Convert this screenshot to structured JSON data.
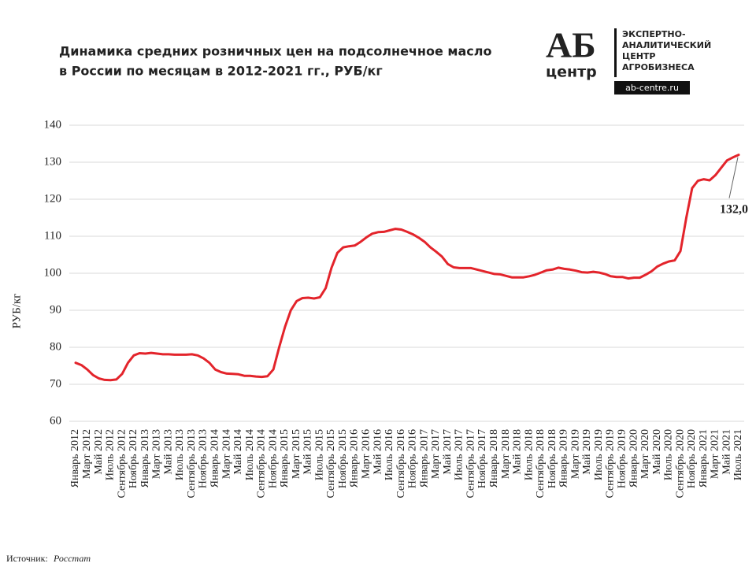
{
  "chart_data": {
    "type": "line",
    "title": [
      "Динамика средних розничных цен на подсолнечное масло",
      "в России по месяцам в 2012-2021 гг., РУБ/кг"
    ],
    "logo": {
      "mark": "АБ",
      "word": "центр",
      "lines": [
        "ЭКСПЕРТНО-",
        "АНАЛИТИЧЕСКИЙ",
        "ЦЕНТР",
        "АГРОБИЗНЕСА"
      ],
      "site": "ab-centre.ru"
    },
    "y_label": "РУБ/кг",
    "source_label": "Источник:",
    "source": "Росстат",
    "annotation": "132,0",
    "ylim": [
      60,
      140
    ],
    "yticks": [
      60,
      70,
      80,
      90,
      100,
      110,
      120,
      130,
      140
    ],
    "grid": true,
    "categories": [
      "Январь 2012",
      null,
      "Март 2012",
      null,
      "Май 2012",
      null,
      "Июль 2012",
      null,
      "Сентябрь 2012",
      null,
      "Ноябрь 2012",
      null,
      "Январь 2013",
      null,
      "Март 2013",
      null,
      "Май 2013",
      null,
      "Июль 2013",
      null,
      "Сентябрь 2013",
      null,
      "Ноябрь 2013",
      null,
      "Январь 2014",
      null,
      "Март 2014",
      null,
      "Май 2014",
      null,
      "Июль 2014",
      null,
      "Сентябрь 2014",
      null,
      "Ноябрь 2014",
      null,
      "Январь 2015",
      null,
      "Март 2015",
      null,
      "Май 2015",
      null,
      "Июль 2015",
      null,
      "Сентябрь 2015",
      null,
      "Ноябрь 2015",
      null,
      "Январь 2016",
      null,
      "Март 2016",
      null,
      "Май 2016",
      null,
      "Июль 2016",
      null,
      "Сентябрь 2016",
      null,
      "Ноябрь 2016",
      null,
      "Январь 2017",
      null,
      "Март 2017",
      null,
      "Май 2017",
      null,
      "Июль 2017",
      null,
      "Сентябрь 2017",
      null,
      "Ноябрь 2017",
      null,
      "Январь 2018",
      null,
      "Март 2018",
      null,
      "Май 2018",
      null,
      "Июль 2018",
      null,
      "Сентябрь 2018",
      null,
      "Ноябрь 2018",
      null,
      "Январь 2019",
      null,
      "Март 2019",
      null,
      "Май 2019",
      null,
      "Июль 2019",
      null,
      "Сентябрь 2019",
      null,
      "Ноябрь 2019",
      null,
      "Январь 2020",
      null,
      "Март 2020",
      null,
      "Май 2020",
      null,
      "Июль 2020",
      null,
      "Сентябрь 2020",
      null,
      "Ноябрь 2020",
      null,
      "Январь 2021",
      null,
      "Март 2021",
      null,
      "Май 2021",
      null,
      "Июль 2021"
    ],
    "series": [
      {
        "name": "РУБ/кг",
        "color": "#e3242b",
        "values": [
          75.8,
          75.2,
          74.0,
          72.5,
          71.6,
          71.2,
          71.1,
          71.3,
          72.8,
          75.8,
          77.8,
          78.4,
          78.3,
          78.5,
          78.3,
          78.1,
          78.1,
          78.0,
          78.0,
          78.0,
          78.1,
          77.8,
          77.0,
          75.8,
          74.0,
          73.3,
          72.9,
          72.8,
          72.7,
          72.3,
          72.3,
          72.1,
          72.0,
          72.2,
          74.0,
          80.0,
          85.5,
          90.0,
          92.5,
          93.3,
          93.4,
          93.2,
          93.5,
          96.0,
          101.5,
          105.5,
          107.0,
          107.3,
          107.5,
          108.5,
          109.7,
          110.7,
          111.1,
          111.2,
          111.6,
          112.0,
          111.8,
          111.2,
          110.5,
          109.6,
          108.5,
          107.0,
          105.8,
          104.5,
          102.5,
          101.6,
          101.4,
          101.4,
          101.4,
          101.0,
          100.6,
          100.2,
          99.8,
          99.7,
          99.3,
          98.9,
          98.9,
          98.9,
          99.2,
          99.6,
          100.2,
          100.8,
          101.0,
          101.5,
          101.2,
          101.0,
          100.7,
          100.3,
          100.2,
          100.4,
          100.2,
          99.8,
          99.2,
          99.0,
          99.0,
          98.6,
          98.8,
          98.8,
          99.6,
          100.5,
          101.8,
          102.6,
          103.2,
          103.5,
          106.0,
          115.0,
          123.0,
          125.0,
          125.4,
          125.1,
          126.5,
          128.5,
          130.5,
          131.3,
          132.0
        ]
      }
    ]
  }
}
